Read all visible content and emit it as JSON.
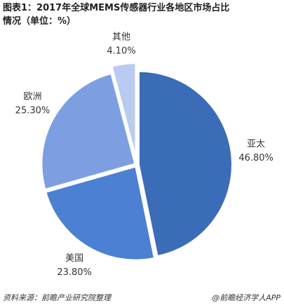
{
  "chart_data": {
    "type": "pie",
    "title": "图表1：2017年全球MEMS传感器行业各地区市场占比情况（单位：%）",
    "categories": [
      "亚太",
      "美国",
      "欧洲",
      "其他"
    ],
    "values": [
      46.8,
      23.8,
      25.3,
      4.1
    ],
    "value_labels": [
      "46.80%",
      "23.80%",
      "25.30%",
      "4.10%"
    ],
    "colors": [
      "#3b6cb7",
      "#4c80d2",
      "#7d9fe2",
      "#b9cbf0"
    ],
    "source": "资料来源：前瞻产业研究院整理",
    "credit": "@前瞻经济学人APP"
  }
}
